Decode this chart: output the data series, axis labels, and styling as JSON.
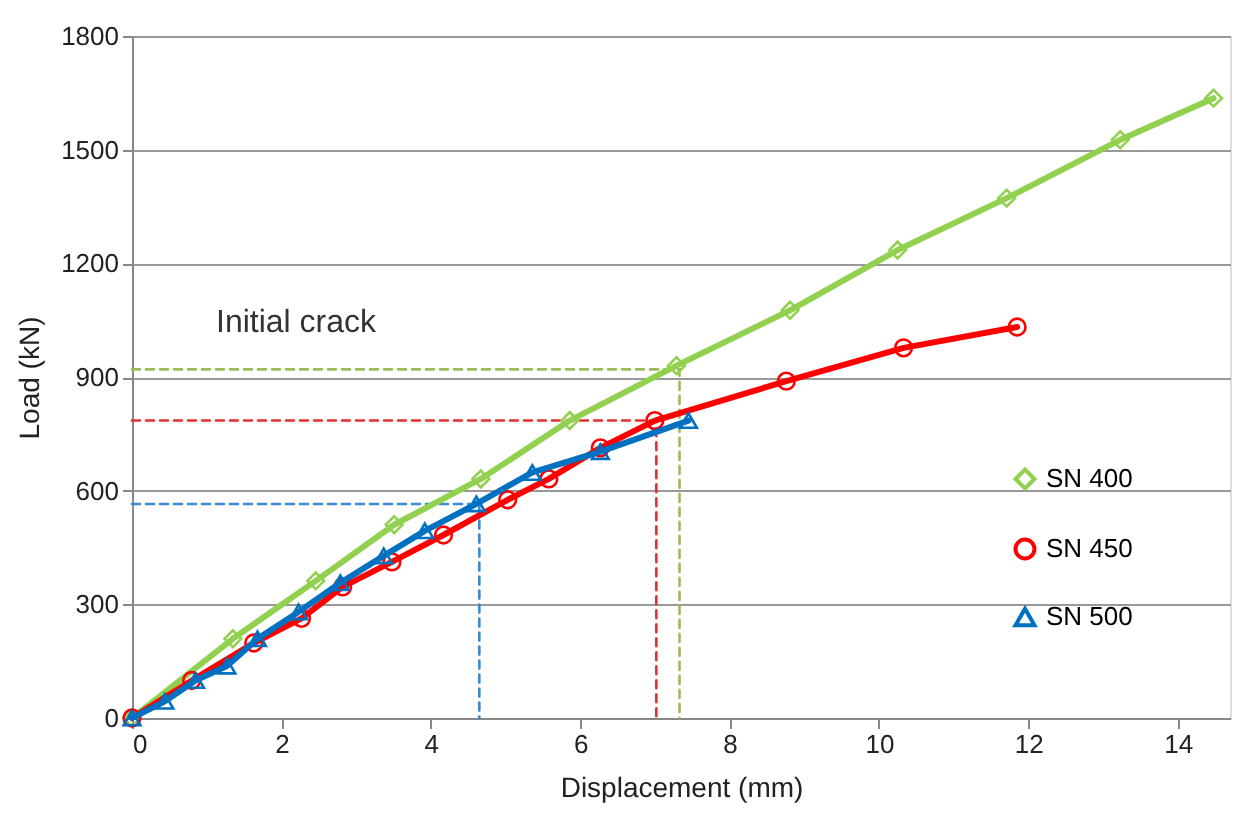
{
  "chart_data": {
    "type": "line",
    "xlabel": "Displacement (mm)",
    "ylabel": "Load (kN)",
    "xlim": [
      0,
      14.7
    ],
    "xticks": [
      0,
      2,
      4,
      6,
      8,
      10,
      12,
      14
    ],
    "ylim": [
      0,
      1800
    ],
    "yticks": [
      0,
      300,
      600,
      900,
      1200,
      1500,
      1800
    ],
    "grid": "y",
    "legend": "right",
    "annotations": [
      "Initial crack"
    ],
    "series": [
      {
        "name": "SN 400",
        "color": "#92d050",
        "marker": "diamond",
        "line_style": "solid",
        "x": [
          0,
          1.35,
          2.46,
          3.51,
          4.67,
          5.86,
          7.29,
          8.81,
          10.25,
          11.71,
          13.23,
          14.48
        ],
        "values": [
          0,
          209,
          362,
          510,
          631,
          785,
          930,
          1076,
          1235,
          1372,
          1526,
          1636
        ]
      },
      {
        "name": "SN 450",
        "color": "#ff0000",
        "marker": "circle",
        "line_style": "solid",
        "x": [
          0,
          0.8,
          1.63,
          2.27,
          2.82,
          3.48,
          4.17,
          5.03,
          5.58,
          6.27,
          7.0,
          8.76,
          10.33,
          11.85
        ],
        "values": [
          0,
          99,
          198,
          263,
          346,
          412,
          483,
          576,
          631,
          713,
          785,
          889,
          977,
          1032
        ]
      },
      {
        "name": "SN 500",
        "color": "#0070c0",
        "marker": "triangle",
        "line_style": "solid",
        "x": [
          0,
          0.44,
          0.85,
          1.27,
          1.68,
          2.23,
          2.79,
          3.37,
          3.92,
          4.61,
          5.36,
          6.27,
          7.45
        ],
        "values": [
          0,
          44,
          99,
          137,
          209,
          280,
          357,
          428,
          494,
          565,
          648,
          703,
          785
        ]
      },
      {
        "color": "#9bbb59",
        "marker": "none",
        "line_style": "dashed",
        "x": [
          0,
          7.33,
          7.33
        ],
        "values": [
          920,
          920,
          0
        ]
      },
      {
        "color": "#e03030",
        "marker": "none",
        "line_style": "dashed",
        "x": [
          0,
          7.02,
          7.02
        ],
        "values": [
          785,
          785,
          0
        ]
      },
      {
        "color": "#3a8ad0",
        "marker": "none",
        "line_style": "dashed",
        "x": [
          0,
          4.65,
          4.65
        ],
        "values": [
          565,
          565,
          0
        ]
      }
    ]
  }
}
